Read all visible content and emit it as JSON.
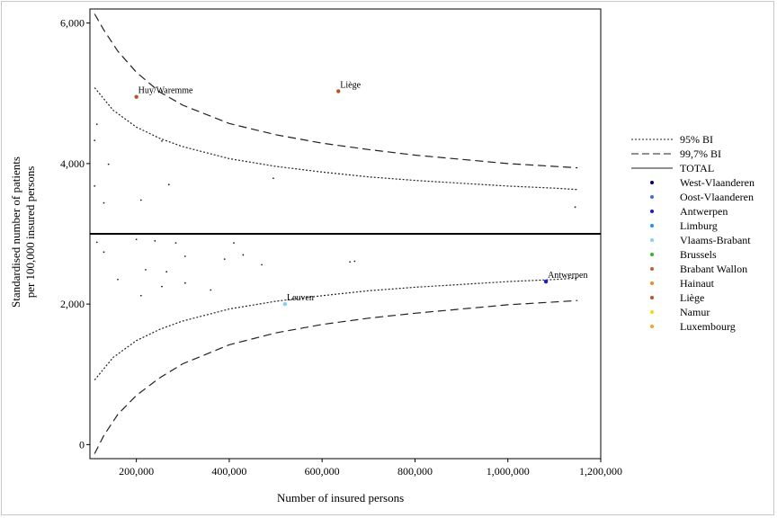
{
  "chart_data": {
    "type": "scatter",
    "title": "",
    "xlabel": "Number of insured persons",
    "ylabel": [
      "Standardised number of patients",
      "per 100,000 insured persons"
    ],
    "xlim": [
      100000,
      1200000
    ],
    "ylim": [
      -200,
      6200
    ],
    "x_ticks": [
      200000,
      400000,
      600000,
      800000,
      1000000,
      1200000
    ],
    "x_tick_labels": [
      "200,000",
      "400,000",
      "600,000",
      "800,000",
      "1,000,000",
      "1,200,000"
    ],
    "y_ticks": [
      0,
      2000,
      4000,
      6000
    ],
    "y_tick_labels": [
      "0",
      "2,000",
      "4,000",
      "6,000"
    ],
    "grid": false,
    "total_line": 3000,
    "limits": [
      {
        "name": "95% BI",
        "style": "dotted",
        "upper_x": [
          110000,
          150000,
          200000,
          250000,
          300000,
          400000,
          500000,
          600000,
          700000,
          800000,
          900000,
          1000000,
          1100000,
          1150000
        ],
        "upper_y": [
          5080,
          4760,
          4520,
          4360,
          4240,
          4070,
          3960,
          3880,
          3810,
          3760,
          3720,
          3680,
          3650,
          3630
        ],
        "lower_x": [
          110000,
          150000,
          200000,
          250000,
          300000,
          400000,
          500000,
          600000,
          700000,
          800000,
          900000,
          1000000,
          1100000,
          1150000
        ],
        "lower_y": [
          920,
          1240,
          1480,
          1640,
          1760,
          1930,
          2040,
          2120,
          2190,
          2240,
          2280,
          2320,
          2350,
          2370
        ]
      },
      {
        "name": "99,7% BI",
        "style": "dashed",
        "upper_x": [
          110000,
          130000,
          160000,
          200000,
          250000,
          300000,
          400000,
          500000,
          600000,
          700000,
          800000,
          900000,
          1000000,
          1100000,
          1150000
        ],
        "upper_y": [
          6130,
          5900,
          5600,
          5300,
          5020,
          4830,
          4570,
          4410,
          4290,
          4200,
          4120,
          4060,
          4000,
          3960,
          3940
        ],
        "lower_x": [
          110000,
          130000,
          160000,
          200000,
          250000,
          300000,
          400000,
          500000,
          600000,
          700000,
          800000,
          900000,
          1000000,
          1100000,
          1150000
        ],
        "lower_y": [
          -130,
          130,
          430,
          700,
          950,
          1150,
          1420,
          1590,
          1710,
          1800,
          1870,
          1930,
          1990,
          2030,
          2050
        ]
      }
    ],
    "small_points": [
      {
        "x": 110000,
        "y": 4330
      },
      {
        "x": 115000,
        "y": 4560
      },
      {
        "x": 140000,
        "y": 3990
      },
      {
        "x": 110000,
        "y": 3680
      },
      {
        "x": 130000,
        "y": 3440
      },
      {
        "x": 210000,
        "y": 3480
      },
      {
        "x": 270000,
        "y": 3700
      },
      {
        "x": 255000,
        "y": 4320
      },
      {
        "x": 495000,
        "y": 3790
      },
      {
        "x": 1145000,
        "y": 3380
      },
      {
        "x": 115000,
        "y": 2880
      },
      {
        "x": 130000,
        "y": 2740
      },
      {
        "x": 200000,
        "y": 2920
      },
      {
        "x": 240000,
        "y": 2900
      },
      {
        "x": 285000,
        "y": 2870
      },
      {
        "x": 305000,
        "y": 2680
      },
      {
        "x": 220000,
        "y": 2490
      },
      {
        "x": 265000,
        "y": 2460
      },
      {
        "x": 160000,
        "y": 2350
      },
      {
        "x": 305000,
        "y": 2300
      },
      {
        "x": 255000,
        "y": 2250
      },
      {
        "x": 360000,
        "y": 2200
      },
      {
        "x": 210000,
        "y": 2120
      },
      {
        "x": 410000,
        "y": 2870
      },
      {
        "x": 390000,
        "y": 2640
      },
      {
        "x": 430000,
        "y": 2700
      },
      {
        "x": 470000,
        "y": 2560
      },
      {
        "x": 660000,
        "y": 2600
      },
      {
        "x": 670000,
        "y": 2610
      }
    ],
    "labeled_points": [
      {
        "label": "Huy/Waremme",
        "x": 200000,
        "y": 4950,
        "color": "#b5562a"
      },
      {
        "label": "Liège",
        "x": 635000,
        "y": 5030,
        "color": "#b5562a"
      },
      {
        "label": "Leuven",
        "x": 520000,
        "y": 2000,
        "color": "#87cefa"
      },
      {
        "label": "Antwerpen",
        "x": 1082000,
        "y": 2320,
        "color": "#1a1adb"
      }
    ],
    "legend": {
      "placement": "right",
      "lines": [
        {
          "label": "95% BI",
          "style": "dotted"
        },
        {
          "label": "99,7% BI",
          "style": "dashed"
        },
        {
          "label": "TOTAL",
          "style": "solid"
        }
      ],
      "regions": [
        {
          "label": "West-Vlaanderen",
          "color": "#00008b"
        },
        {
          "label": "Oost-Vlaanderen",
          "color": "#4169e1"
        },
        {
          "label": "Antwerpen",
          "color": "#1a1adb"
        },
        {
          "label": "Limburg",
          "color": "#1e90ff"
        },
        {
          "label": "Vlaams-Brabant",
          "color": "#87cefa"
        },
        {
          "label": "Brussels",
          "color": "#2eb82e"
        },
        {
          "label": "Brabant Wallon",
          "color": "#c0622c"
        },
        {
          "label": "Hainaut",
          "color": "#f08a24"
        },
        {
          "label": "Liège",
          "color": "#b5562a"
        },
        {
          "label": "Namur",
          "color": "#ffd700"
        },
        {
          "label": "Luxembourg",
          "color": "#f5a623"
        }
      ]
    }
  }
}
